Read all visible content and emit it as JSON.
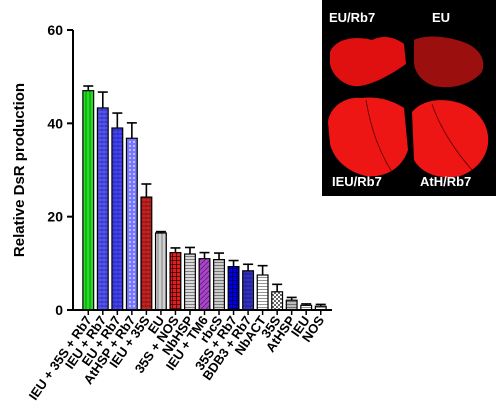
{
  "chart_data": {
    "type": "bar",
    "title": "",
    "xlabel": "",
    "ylabel": "Relative DsR production",
    "ylim": [
      0,
      60
    ],
    "yticks": [
      0,
      20,
      40,
      60
    ],
    "grid": false,
    "legend": "none",
    "categories": [
      "IEU + 35S + Rb7",
      "IEU + Rb7",
      "EU + Rb7",
      "AtHSP + Rb7",
      "IEU + 35S",
      "EU",
      "35S + NOS",
      "NbHSP",
      "IEU + TM6",
      "rbcS",
      "35S + Rb7",
      "BDB3 + Rb7",
      "NbACT",
      "35S",
      "AtHSP",
      "IEU",
      "NOS"
    ],
    "values": [
      47.0,
      43.3,
      39.0,
      36.8,
      24.2,
      16.5,
      12.3,
      12.0,
      11.0,
      10.8,
      9.3,
      8.4,
      7.5,
      3.9,
      2.1,
      1.0,
      0.8
    ],
    "errors": [
      1.0,
      3.4,
      3.2,
      3.3,
      2.8,
      0.3,
      1.0,
      1.4,
      1.3,
      1.4,
      1.3,
      1.4,
      2.0,
      1.6,
      0.6,
      0.3,
      0.4
    ],
    "bar_fills": [
      "#22dd22",
      "#5555ff",
      "#4444ff",
      "#7777ff",
      "#cc2222",
      "#d0d0d0",
      "#e02020",
      "#d8d8d8",
      "#aa44cc",
      "#cccccc",
      "#0000ee",
      "#3333cc",
      "#ffffff",
      "#666666",
      "#bbbbbb",
      "#ffffff",
      "#ffffff"
    ],
    "bar_patterns": [
      "vline",
      "hatch",
      "hatch",
      "dots",
      "hatch",
      "vline",
      "grid",
      "hline",
      "diag",
      "hline",
      "grid",
      "hatch",
      "hline",
      "checker",
      "hline",
      "hline",
      "hline"
    ]
  },
  "inset": {
    "labels": [
      "EU/Rb7",
      "EU",
      "IEU/Rb7",
      "AtH/Rb7"
    ],
    "background": "#000000",
    "leaf_color": "#e01010"
  }
}
